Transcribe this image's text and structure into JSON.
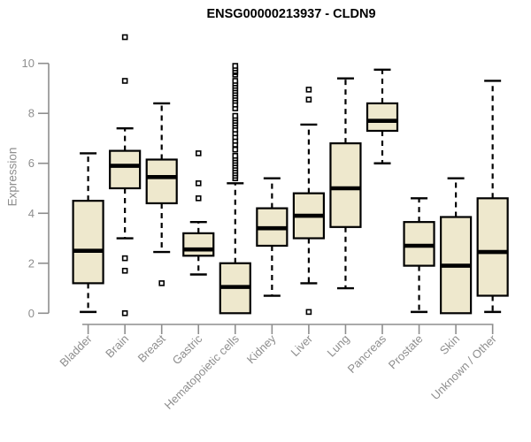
{
  "chart_data": {
    "type": "boxplot",
    "title": "ENSG00000213937 - CLDN9",
    "xlabel": "",
    "ylabel": "Expression",
    "ylim": [
      0,
      10
    ],
    "yticks": [
      0,
      2,
      4,
      6,
      8,
      10
    ],
    "grid": false,
    "legend": "none",
    "x_label_rotation": 45,
    "colors": {
      "box_fill": "#EEE8CD",
      "box_stroke": "#000000",
      "median": "#000000",
      "whisker": "#000000",
      "axis": "#8E8E8E",
      "tick_label": "#8E8E8E",
      "title": "#000000"
    },
    "categories": [
      "Bladder",
      "Brain",
      "Breast",
      "Gastric",
      "Hematopoietic cells",
      "Kidney",
      "Liver",
      "Lung",
      "Pancreas",
      "Prostate",
      "Skin",
      "Unknown / Other"
    ],
    "boxes": [
      {
        "category": "Bladder",
        "low": 0.05,
        "q1": 1.2,
        "median": 2.5,
        "q3": 4.5,
        "high": 6.4,
        "outliers": []
      },
      {
        "category": "Brain",
        "low": 3.0,
        "q1": 5.0,
        "median": 5.9,
        "q3": 6.5,
        "high": 7.4,
        "outliers": [
          11.05,
          9.3,
          2.2,
          1.7,
          0.0
        ]
      },
      {
        "category": "Breast",
        "low": 2.45,
        "q1": 4.4,
        "median": 5.45,
        "q3": 6.15,
        "high": 8.4,
        "outliers": [
          1.2
        ]
      },
      {
        "category": "Gastric",
        "low": 1.55,
        "q1": 2.3,
        "median": 2.55,
        "q3": 3.2,
        "high": 3.65,
        "outliers": [
          6.4,
          5.2,
          4.6
        ]
      },
      {
        "category": "Hematopoietic cells",
        "low": null,
        "q1": 0.0,
        "median": 1.05,
        "q3": 2.0,
        "high": 5.2,
        "outliers": [
          5.4,
          5.5,
          5.6,
          5.7,
          5.8,
          5.9,
          6.0,
          6.1,
          6.2,
          6.3,
          6.55,
          6.75,
          6.9,
          7.05,
          7.2,
          7.35,
          7.5,
          7.6,
          7.7,
          7.8,
          7.9,
          8.2,
          8.35,
          8.5,
          8.6,
          8.7,
          8.8,
          8.9,
          9.0,
          9.1,
          9.2,
          9.3,
          9.55,
          9.65,
          9.7,
          9.8,
          9.9
        ]
      },
      {
        "category": "Kidney",
        "low": 0.7,
        "q1": 2.7,
        "median": 3.4,
        "q3": 4.2,
        "high": 5.4,
        "outliers": []
      },
      {
        "category": "Liver",
        "low": 1.2,
        "q1": 3.0,
        "median": 3.9,
        "q3": 4.8,
        "high": 7.55,
        "outliers": [
          8.95,
          8.55,
          0.05
        ]
      },
      {
        "category": "Lung",
        "low": 1.0,
        "q1": 3.45,
        "median": 5.0,
        "q3": 6.8,
        "high": 9.4,
        "outliers": []
      },
      {
        "category": "Pancreas",
        "low": 6.0,
        "q1": 7.3,
        "median": 7.7,
        "q3": 8.4,
        "high": 9.75,
        "outliers": []
      },
      {
        "category": "Prostate",
        "low": 0.05,
        "q1": 1.9,
        "median": 2.7,
        "q3": 3.65,
        "high": 4.6,
        "outliers": []
      },
      {
        "category": "Skin",
        "low": null,
        "q1": 0.0,
        "median": 1.9,
        "q3": 3.85,
        "high": 5.4,
        "outliers": []
      },
      {
        "category": "Unknown / Other",
        "low": 0.05,
        "q1": 0.7,
        "median": 2.45,
        "q3": 4.6,
        "high": 9.3,
        "outliers": []
      }
    ]
  }
}
